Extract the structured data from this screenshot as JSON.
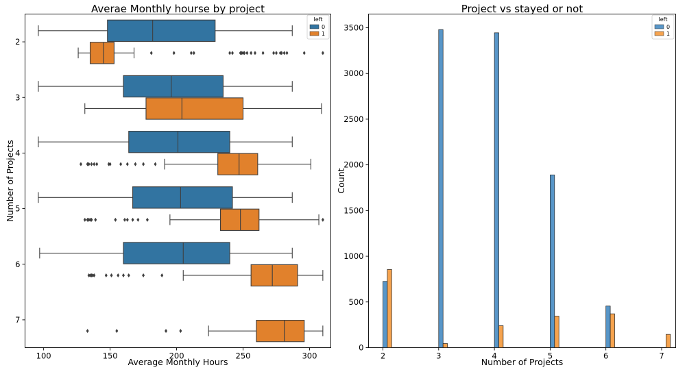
{
  "colors": {
    "blue": "#3274a1",
    "orange": "#e1812c",
    "blue_light": "#5896c8",
    "orange_light": "#f6a34e"
  },
  "chart_data": [
    {
      "type": "boxplot",
      "orientation": "horizontal",
      "title": "Averae Monthly hourse by project",
      "xlabel": "Average Monthly Hours",
      "ylabel": "Number of Projects",
      "xlim": [
        86,
        316
      ],
      "xticks": [
        "100",
        "150",
        "200",
        "250",
        "300"
      ],
      "categories": [
        "2",
        "3",
        "4",
        "5",
        "6",
        "7"
      ],
      "legend": {
        "title": "left",
        "placement": "top-right",
        "entries": [
          "0",
          "1"
        ]
      },
      "series": [
        {
          "name": "0",
          "boxes": [
            {
              "category": "2",
              "whislo": 96,
              "q1": 148,
              "med": 182,
              "q3": 229,
              "whishi": 287,
              "fliers": []
            },
            {
              "category": "3",
              "whislo": 96,
              "q1": 160,
              "med": 196,
              "q3": 235,
              "whishi": 287,
              "fliers": []
            },
            {
              "category": "4",
              "whislo": 96,
              "q1": 164,
              "med": 201,
              "q3": 240,
              "whishi": 287,
              "fliers": []
            },
            {
              "category": "5",
              "whislo": 96,
              "q1": 167,
              "med": 203,
              "q3": 242,
              "whishi": 287,
              "fliers": []
            },
            {
              "category": "6",
              "whislo": 97,
              "q1": 160,
              "med": 205,
              "q3": 240,
              "whishi": 287,
              "fliers": []
            }
          ]
        },
        {
          "name": "1",
          "boxes": [
            {
              "category": "2",
              "whislo": 126,
              "q1": 135,
              "med": 145,
              "q3": 153,
              "whishi": 168,
              "fliers": [
                181,
                198,
                211,
                213,
                240,
                242,
                248,
                249,
                250,
                251,
                253,
                256,
                259,
                265,
                273,
                275,
                278,
                279,
                281,
                283,
                296,
                310
              ]
            },
            {
              "category": "3",
              "whislo": 131,
              "q1": 177,
              "med": 204,
              "q3": 250,
              "whishi": 309,
              "fliers": []
            },
            {
              "category": "4",
              "whislo": 191,
              "q1": 231,
              "med": 247,
              "q3": 261,
              "whishi": 301,
              "fliers": [
                128,
                133,
                134,
                136,
                138,
                140,
                149,
                150,
                158,
                163,
                169,
                175,
                184
              ]
            },
            {
              "category": "5",
              "whislo": 195,
              "q1": 233,
              "med": 248,
              "q3": 262,
              "whishi": 307,
              "fliers": [
                131,
                133,
                134,
                135,
                136,
                139,
                154,
                161,
                163,
                167,
                171,
                178,
                310
              ]
            },
            {
              "category": "6",
              "whislo": 205,
              "q1": 256,
              "med": 272,
              "q3": 291,
              "whishi": 310,
              "fliers": [
                134,
                135,
                136,
                137,
                138,
                147,
                151,
                156,
                160,
                164,
                175,
                189
              ]
            },
            {
              "category": "7",
              "whislo": 224,
              "q1": 260,
              "med": 281,
              "q3": 296,
              "whishi": 310,
              "fliers": [
                133,
                155,
                192,
                203
              ]
            }
          ]
        }
      ]
    },
    {
      "type": "bar",
      "title": "Project vs stayed or not",
      "xlabel": "Number of Projects",
      "ylabel": "Count",
      "ylim": [
        0,
        3650
      ],
      "yticks": [
        "0",
        "500",
        "1000",
        "1500",
        "2000",
        "2500",
        "3000",
        "3500"
      ],
      "categories": [
        "2",
        "3",
        "4",
        "5",
        "6",
        "7"
      ],
      "legend": {
        "title": "left",
        "placement": "top-right",
        "entries": [
          "0",
          "1"
        ]
      },
      "series": [
        {
          "name": "0",
          "values": [
            725,
            3480,
            3445,
            1890,
            455,
            0
          ]
        },
        {
          "name": "1",
          "values": [
            855,
            45,
            240,
            345,
            370,
            145
          ]
        }
      ]
    }
  ]
}
